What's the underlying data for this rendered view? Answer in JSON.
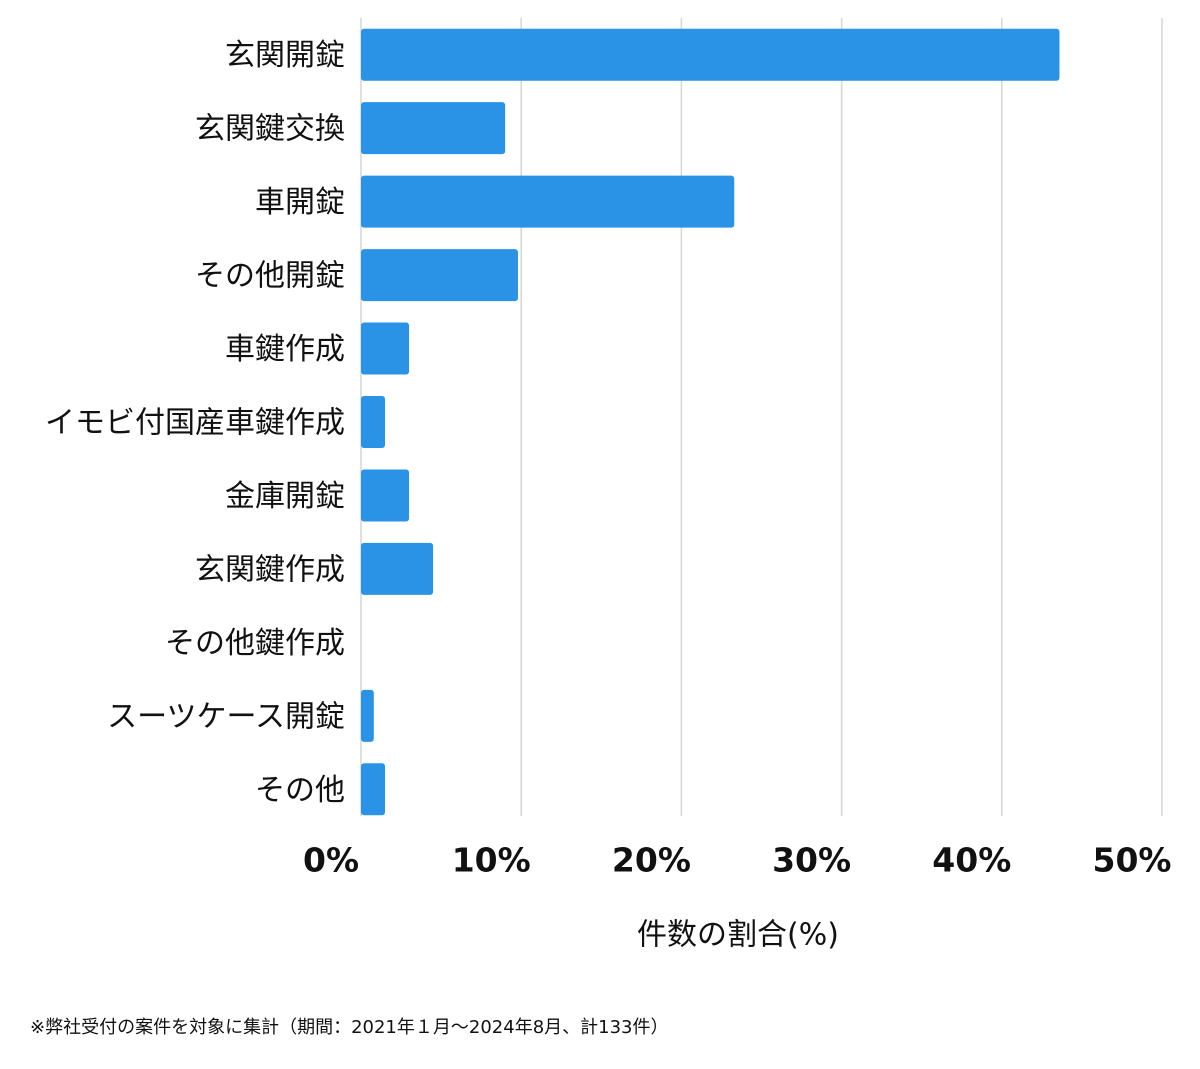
{
  "chart_data": {
    "type": "bar",
    "orientation": "horizontal",
    "categories": [
      "玄関開錠",
      "玄関鍵交換",
      "車開錠",
      "その他開錠",
      "車鍵作成",
      "イモビ付国産車鍵作成",
      "金庫開錠",
      "玄関鍵作成",
      "その他鍵作成",
      "スーツケース開錠",
      "その他"
    ],
    "values": [
      43.6,
      9,
      23.3,
      9.8,
      3,
      1.5,
      3,
      4.5,
      0,
      0.8,
      1.5
    ],
    "color": "#2a93e5",
    "xlim": [
      0,
      50
    ],
    "xticks": [
      {
        "value": 0,
        "label": "0%"
      },
      {
        "value": 10,
        "label": "10%"
      },
      {
        "value": 20,
        "label": "20%"
      },
      {
        "value": 30,
        "label": "30%"
      },
      {
        "value": 40,
        "label": "40%"
      },
      {
        "value": 50,
        "label": "50%"
      }
    ],
    "grid": true,
    "x_label": "件数の割合(%)",
    "footnote": "※弊社受付の案件を対象に集計（期間：2021年１月〜2024年8月、計133件）"
  }
}
